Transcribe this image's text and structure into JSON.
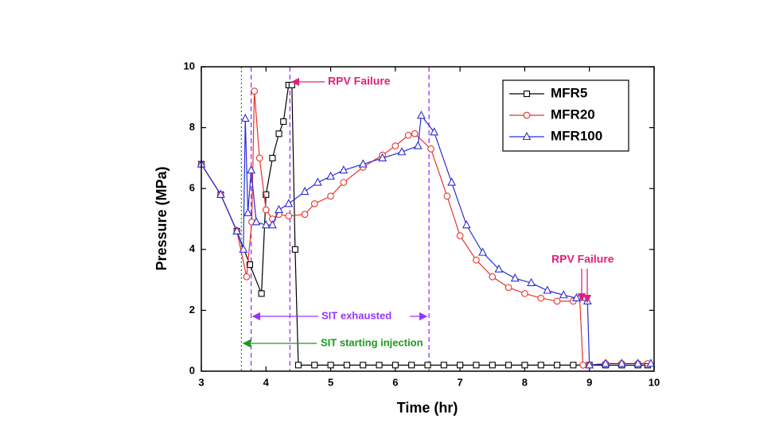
{
  "chart_data": {
    "type": "line",
    "xlabel": "Time (hr)",
    "ylabel": "Pressure (MPa)",
    "xlim": [
      3,
      10
    ],
    "xticks": [
      3,
      4,
      5,
      6,
      7,
      8,
      9,
      10
    ],
    "ylim": [
      0,
      10
    ],
    "yticks": [
      0,
      2,
      4,
      6,
      8,
      10
    ],
    "legend": "upper right",
    "series": [
      {
        "name": "MFR5",
        "color": "#000000",
        "marker": "square",
        "x": [
          3,
          3.3,
          3.55,
          3.75,
          3.93,
          4.0,
          4.1,
          4.2,
          4.27,
          4.35,
          4.4,
          4.45,
          4.5,
          4.75,
          5.0,
          5.25,
          5.5,
          5.75,
          6.0,
          6.25,
          6.5,
          6.75,
          7.0,
          7.25,
          7.5,
          7.75,
          8.0,
          8.25,
          8.5,
          8.75,
          9.0,
          9.25,
          9.5,
          9.75,
          9.9
        ],
        "values": [
          6.8,
          5.8,
          4.6,
          3.5,
          2.55,
          5.8,
          7.0,
          7.8,
          8.2,
          9.4,
          9.4,
          4.0,
          0.2,
          0.2,
          0.2,
          0.2,
          0.2,
          0.2,
          0.2,
          0.2,
          0.2,
          0.2,
          0.2,
          0.2,
          0.2,
          0.2,
          0.2,
          0.2,
          0.2,
          0.2,
          0.2,
          0.2,
          0.2,
          0.2,
          0.2
        ]
      },
      {
        "name": "MFR20",
        "color": "#e8332a",
        "marker": "circle",
        "x": [
          3,
          3.3,
          3.55,
          3.7,
          3.78,
          3.82,
          3.9,
          4.0,
          4.1,
          4.2,
          4.35,
          4.6,
          4.75,
          5.0,
          5.2,
          5.5,
          5.8,
          6.0,
          6.2,
          6.3,
          6.55,
          6.8,
          7.0,
          7.25,
          7.5,
          7.75,
          8.0,
          8.25,
          8.5,
          8.75,
          8.85,
          8.9,
          9.0,
          9.25,
          9.5,
          9.75,
          9.9
        ],
        "values": [
          6.8,
          5.8,
          4.6,
          3.1,
          4.9,
          9.2,
          7.0,
          5.3,
          5.0,
          5.15,
          5.1,
          5.15,
          5.5,
          5.75,
          6.2,
          6.7,
          7.1,
          7.4,
          7.75,
          7.8,
          7.3,
          5.75,
          4.45,
          3.65,
          3.1,
          2.75,
          2.55,
          2.4,
          2.3,
          2.3,
          2.4,
          0.2,
          0.2,
          0.25,
          0.25,
          0.25,
          0.25
        ]
      },
      {
        "name": "MFR100",
        "color": "#2b2bd6",
        "marker": "triangle",
        "x": [
          3,
          3.3,
          3.55,
          3.65,
          3.68,
          3.72,
          3.77,
          3.85,
          4.0,
          4.1,
          4.2,
          4.35,
          4.6,
          4.8,
          5.0,
          5.2,
          5.5,
          5.8,
          6.1,
          6.35,
          6.4,
          6.6,
          6.87,
          7.1,
          7.35,
          7.6,
          7.85,
          8.1,
          8.35,
          8.6,
          8.8,
          8.97,
          9.0,
          9.25,
          9.5,
          9.75,
          9.95
        ],
        "values": [
          6.8,
          5.8,
          4.6,
          4.0,
          8.3,
          5.2,
          6.6,
          4.9,
          4.8,
          4.8,
          5.3,
          5.5,
          5.9,
          6.2,
          6.4,
          6.6,
          6.8,
          7.0,
          7.2,
          7.4,
          8.4,
          7.85,
          6.2,
          4.8,
          3.9,
          3.35,
          3.05,
          2.9,
          2.65,
          2.5,
          2.4,
          2.3,
          0.2,
          0.25,
          0.25,
          0.25,
          0.25
        ]
      }
    ],
    "reference_lines": [
      {
        "x": 3.62,
        "color": "#1a9a1a",
        "style": "dotted"
      },
      {
        "x": 3.77,
        "color": "#9933ff",
        "style": "dashed"
      },
      {
        "x": 4.37,
        "color": "#9933ff",
        "style": "dashed"
      },
      {
        "x": 6.52,
        "color": "#9933ff",
        "style": "dashed"
      }
    ],
    "annotations": [
      "RPV Failure",
      "RPV Failure",
      "SIT exhausted",
      "SIT starting injection"
    ]
  }
}
